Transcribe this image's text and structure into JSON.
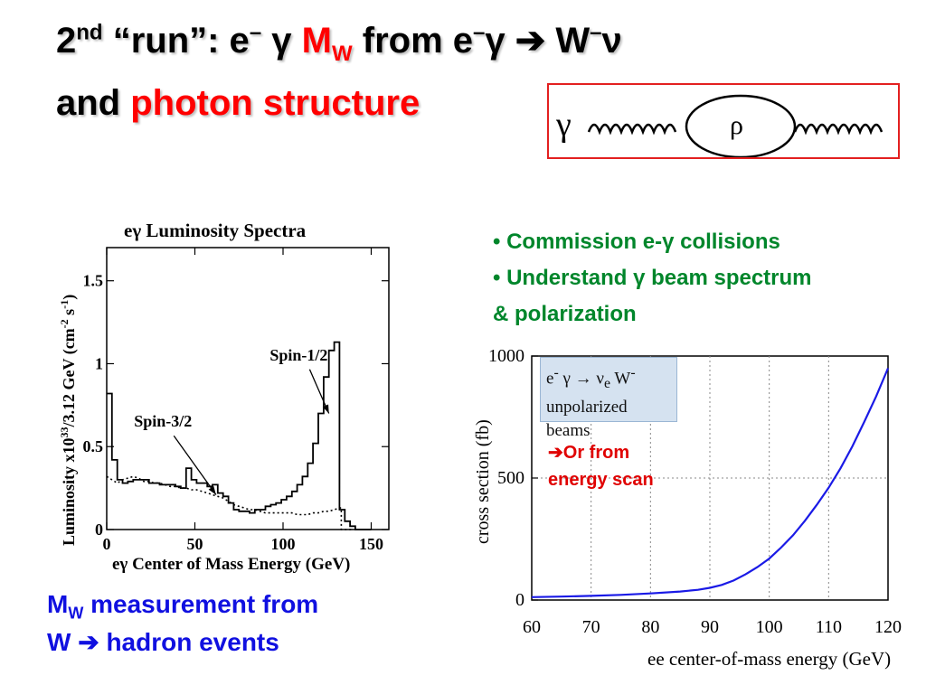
{
  "title": {
    "line1_num": "2",
    "line1_sup": "nd",
    "line1_a": " “run”:  e",
    "line1_minus": "–",
    "line1_gamma": " γ   ",
    "line1_mw_m": "M",
    "line1_mw_sub": "W",
    "line1_b": " from  e",
    "line1_c": "–",
    "line1_d": "γ ➔ W",
    "line1_e": "–",
    "line1_f": "ν",
    "line2_a": "and ",
    "line2_b": "photon structure"
  },
  "diagram": {
    "gamma": "γ",
    "rho": "ρ",
    "border_color": "#e32020"
  },
  "bullets": [
    "Commission e-γ collisions",
    "Understand γ beam spectrum",
    "& polarization"
  ],
  "bullet_marker": "•",
  "bottom_left": {
    "mw_m": "M",
    "mw_sub": "W",
    "line1_rest": " measurement from",
    "line2": "W ➔ hadron events"
  },
  "callout": {
    "line1": "➔Or from",
    "line2": "energy scan"
  },
  "chart_data": [
    {
      "type": "line",
      "title": "eγ Luminosity Spectra",
      "xlabel": "eγ Center of Mass Energy (GeV)",
      "ylabel": "Luminosity x10^33/3.12 GeV (cm^-2 s^-1)",
      "ylabel_parts": [
        "Luminosity x10",
        "33",
        "/3.12 GeV (cm",
        "-2",
        " s",
        "-1",
        ")"
      ],
      "xlim": [
        0,
        160
      ],
      "ylim": [
        0,
        1.7
      ],
      "xticks": [
        0,
        50,
        100,
        150
      ],
      "xtick_labels": [
        "0",
        "50",
        "100",
        "150"
      ],
      "yticks": [
        0,
        0.5,
        1,
        1.5
      ],
      "ytick_labels": [
        "0",
        "0.5",
        "1",
        "1.5"
      ],
      "grid": false,
      "series": [
        {
          "name": "Spin-1/2",
          "style": "solid",
          "x": [
            0,
            3,
            3,
            6,
            6,
            9,
            9,
            12,
            12,
            15,
            15,
            18,
            18,
            21,
            21,
            24,
            24,
            27,
            27,
            30,
            30,
            33,
            33,
            36,
            36,
            39,
            39,
            42,
            42,
            45,
            45,
            48,
            48,
            51,
            51,
            54,
            54,
            57,
            57,
            60,
            60,
            63,
            63,
            66,
            66,
            69,
            69,
            72,
            72,
            75,
            75,
            78,
            78,
            81,
            81,
            84,
            84,
            87,
            87,
            90,
            90,
            93,
            93,
            96,
            96,
            99,
            99,
            102,
            102,
            105,
            105,
            108,
            108,
            111,
            111,
            114,
            114,
            117,
            117,
            120,
            120,
            123,
            123,
            126,
            126,
            129,
            129,
            132,
            132,
            135,
            135,
            138,
            138,
            141,
            141,
            144,
            144,
            150
          ],
          "y": [
            0.82,
            0.82,
            0.42,
            0.42,
            0.3,
            0.3,
            0.28,
            0.28,
            0.29,
            0.29,
            0.3,
            0.3,
            0.3,
            0.3,
            0.3,
            0.3,
            0.28,
            0.28,
            0.28,
            0.28,
            0.27,
            0.27,
            0.27,
            0.27,
            0.27,
            0.27,
            0.26,
            0.26,
            0.25,
            0.25,
            0.37,
            0.37,
            0.3,
            0.3,
            0.28,
            0.28,
            0.28,
            0.28,
            0.26,
            0.26,
            0.27,
            0.27,
            0.22,
            0.22,
            0.2,
            0.2,
            0.16,
            0.16,
            0.12,
            0.12,
            0.11,
            0.11,
            0.11,
            0.11,
            0.1,
            0.1,
            0.12,
            0.12,
            0.12,
            0.12,
            0.14,
            0.14,
            0.15,
            0.15,
            0.16,
            0.16,
            0.18,
            0.18,
            0.2,
            0.2,
            0.23,
            0.23,
            0.27,
            0.27,
            0.32,
            0.32,
            0.4,
            0.4,
            0.52,
            0.52,
            0.7,
            0.7,
            0.92,
            0.92,
            1.08,
            1.08,
            1.13,
            1.13,
            0.12,
            0.12,
            0.05,
            0.05,
            0.02,
            0.02,
            0.0,
            0.0,
            0.0,
            0.0
          ]
        },
        {
          "name": "Spin-3/2",
          "style": "dotted",
          "x": [
            0,
            3,
            6,
            9,
            12,
            15,
            18,
            21,
            24,
            27,
            30,
            33,
            36,
            39,
            42,
            45,
            48,
            51,
            54,
            57,
            60,
            63,
            66,
            69,
            72,
            75,
            78,
            81,
            84,
            87,
            90,
            93,
            96,
            99,
            102,
            105,
            108,
            111,
            114,
            117,
            120,
            123,
            126,
            129,
            132,
            133,
            133,
            140
          ],
          "y": [
            0.32,
            0.3,
            0.28,
            0.3,
            0.31,
            0.32,
            0.31,
            0.29,
            0.29,
            0.28,
            0.28,
            0.27,
            0.26,
            0.26,
            0.25,
            0.25,
            0.24,
            0.24,
            0.23,
            0.22,
            0.21,
            0.2,
            0.19,
            0.17,
            0.15,
            0.14,
            0.13,
            0.12,
            0.12,
            0.11,
            0.1,
            0.1,
            0.1,
            0.1,
            0.1,
            0.1,
            0.09,
            0.09,
            0.09,
            0.1,
            0.1,
            0.11,
            0.11,
            0.12,
            0.13,
            0.13,
            0.0,
            0.0
          ]
        }
      ],
      "annotations": [
        {
          "text": "Spin-1/2",
          "x": 126,
          "y": 0.7,
          "label_x": 112,
          "label_y": 1.02
        },
        {
          "text": "Spin-3/2",
          "x": 62,
          "y": 0.21,
          "label_x": 35,
          "label_y": 0.62
        }
      ]
    },
    {
      "type": "line",
      "title": "",
      "xlabel": "ee center-of-mass energy (GeV)",
      "ylabel": "cross section  (fb)",
      "xlim": [
        60,
        120
      ],
      "ylim": [
        0,
        1000
      ],
      "xticks": [
        60,
        70,
        80,
        90,
        100,
        110,
        120
      ],
      "xtick_labels": [
        "60",
        "70",
        "80",
        "90",
        "100",
        "110",
        "120"
      ],
      "yticks": [
        0,
        500,
        1000
      ],
      "ytick_labels": [
        "0",
        "500",
        "1000"
      ],
      "grid": true,
      "legend_line1_a": "e",
      "legend_line1_sup": "-",
      "legend_line1_b": " γ  →  ν",
      "legend_line1_sub": "e",
      "legend_line1_c": " W",
      "legend_line1_sup2": "-",
      "legend_line2": "unpolarized beams",
      "series": [
        {
          "name": "e- γ → νe W-",
          "color": "#1a1ae6",
          "x": [
            60,
            65,
            70,
            75,
            80,
            85,
            88,
            90,
            92,
            94,
            96,
            98,
            100,
            102,
            104,
            106,
            108,
            110,
            112,
            114,
            116,
            118,
            120
          ],
          "y": [
            12,
            14,
            17,
            21,
            27,
            35,
            42,
            50,
            62,
            80,
            105,
            135,
            170,
            215,
            265,
            325,
            390,
            460,
            540,
            630,
            730,
            835,
            950
          ]
        }
      ]
    }
  ]
}
